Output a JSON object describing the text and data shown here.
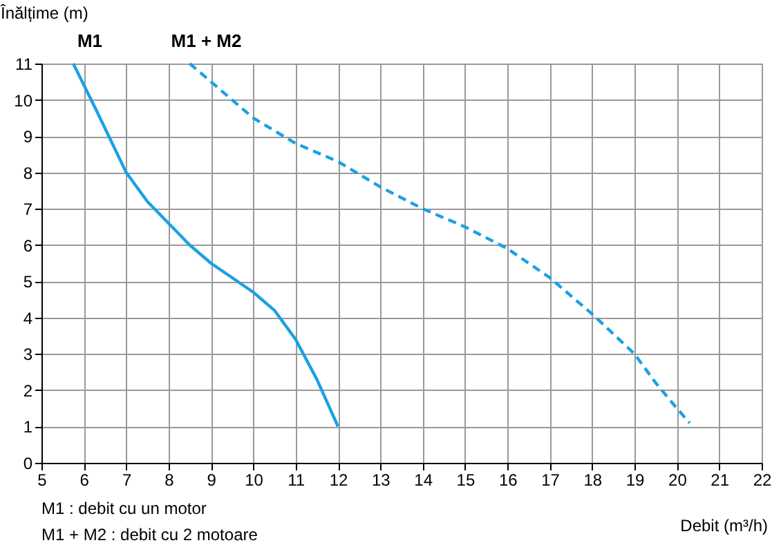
{
  "chart_data": {
    "type": "line",
    "xlabel": "Debit (m³/h)",
    "ylabel": "Înălțime (m)",
    "xlim": [
      5,
      22
    ],
    "xticks": [
      5,
      6,
      7,
      8,
      9,
      10,
      11,
      12,
      13,
      14,
      15,
      16,
      17,
      18,
      19,
      20,
      21,
      22
    ],
    "ylim": [
      0,
      11
    ],
    "yticks": [
      0,
      1,
      2,
      3,
      4,
      5,
      6,
      7,
      8,
      9,
      10,
      11
    ],
    "grid": true,
    "marker": "none",
    "series": [
      {
        "name": "M1",
        "color": "#1ba1e2",
        "line_style": "solid",
        "x": [
          5.75,
          6.3,
          7,
          7.5,
          8,
          8.5,
          9,
          9.5,
          10,
          10.5,
          11,
          11.5,
          12
        ],
        "values": [
          11,
          9.7,
          8,
          7.2,
          6.6,
          6,
          5.5,
          5.1,
          4.7,
          4.2,
          3.4,
          2.3,
          1
        ]
      },
      {
        "name": "M1 + M2",
        "color": "#1ba1e2",
        "line_style": "dashed",
        "x": [
          8.5,
          9,
          10,
          11,
          12,
          13,
          14,
          15,
          16,
          17,
          18,
          19,
          19.5,
          20,
          20.3
        ],
        "values": [
          11,
          10.5,
          9.5,
          8.8,
          8.3,
          7.6,
          7,
          6.5,
          5.9,
          5.1,
          4.1,
          3,
          2.2,
          1.5,
          1.1
        ]
      }
    ],
    "annotations": [
      "M1       : debit cu un motor",
      "M1 + M2 : debit cu 2 motoare"
    ]
  }
}
